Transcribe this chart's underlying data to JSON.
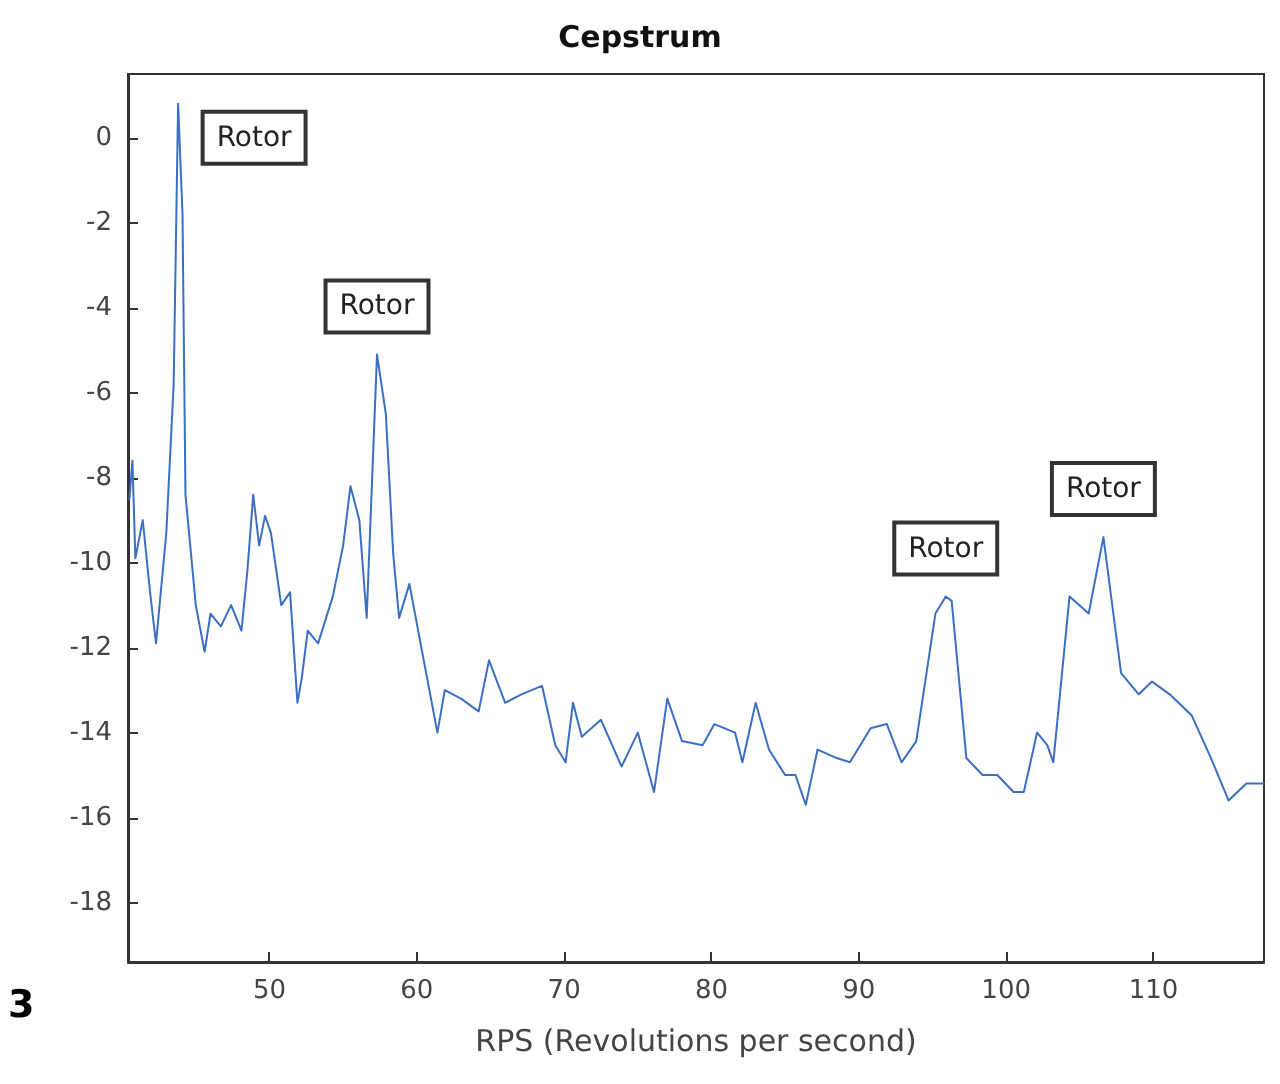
{
  "chart_data": {
    "type": "line",
    "title": "Cepstrum",
    "xlabel": "RPS (Revolutions per second)",
    "xlim": [
      40.4,
      117.5
    ],
    "xticks": [
      50,
      60,
      70,
      80,
      90,
      100,
      110
    ],
    "ylim": [
      -19.4,
      1.5
    ],
    "yticks": [
      0,
      -2,
      -4,
      -6,
      -8,
      -10,
      -12,
      -14,
      -16,
      -18
    ],
    "grid": false,
    "marker": "none",
    "line_style": "solid",
    "series": [
      {
        "color": "#3b6fc4",
        "x": [
          40.5,
          40.7,
          40.9,
          41.4,
          41.9,
          42.3,
          43.0,
          43.5,
          43.8,
          44.1,
          44.3,
          45.0,
          45.6,
          46.0,
          46.7,
          47.4,
          48.1,
          48.5,
          48.9,
          49.3,
          49.7,
          50.1,
          50.8,
          51.4,
          51.9,
          52.2,
          52.6,
          53.3,
          54.3,
          55.0,
          55.5,
          56.1,
          56.6,
          57.3,
          57.9,
          58.4,
          58.8,
          59.5,
          60.2,
          61.4,
          61.9,
          63.0,
          64.2,
          64.9,
          66.0,
          67.1,
          68.5,
          69.4,
          70.1,
          70.6,
          71.2,
          72.5,
          73.9,
          75.0,
          76.1,
          77.0,
          78.0,
          79.4,
          80.2,
          81.6,
          82.1,
          83.0,
          83.9,
          85.0,
          85.7,
          86.4,
          87.2,
          88.5,
          89.4,
          90.8,
          91.9,
          92.9,
          93.9,
          95.2,
          95.9,
          96.3,
          97.3,
          98.4,
          99.4,
          100.5,
          101.2,
          102.1,
          102.8,
          103.2,
          104.3,
          105.6,
          106.6,
          107.8,
          109.0,
          109.9,
          111.1,
          112.6,
          113.9,
          115.1,
          116.3,
          117.5
        ],
        "values": [
          -8.5,
          -7.6,
          -9.9,
          -9.0,
          -10.7,
          -11.9,
          -9.3,
          -5.8,
          0.8,
          -1.8,
          -8.4,
          -11.0,
          -12.1,
          -11.2,
          -11.5,
          -11.0,
          -11.6,
          -10.2,
          -8.4,
          -9.6,
          -8.9,
          -9.3,
          -11.0,
          -10.7,
          -13.3,
          -12.7,
          -11.6,
          -11.9,
          -10.8,
          -9.6,
          -8.2,
          -9.0,
          -11.3,
          -5.1,
          -6.5,
          -9.8,
          -11.3,
          -10.5,
          -11.8,
          -14.0,
          -13.0,
          -13.2,
          -13.5,
          -12.3,
          -13.3,
          -13.1,
          -12.9,
          -14.3,
          -14.7,
          -13.3,
          -14.1,
          -13.7,
          -14.8,
          -14.0,
          -15.4,
          -13.2,
          -14.2,
          -14.3,
          -13.8,
          -14.0,
          -14.7,
          -13.3,
          -14.4,
          -15.0,
          -15.0,
          -15.7,
          -14.4,
          -14.6,
          -14.7,
          -13.9,
          -13.8,
          -14.7,
          -14.2,
          -11.2,
          -10.8,
          -10.9,
          -14.6,
          -15.0,
          -15.0,
          -15.4,
          -15.4,
          -14.0,
          -14.3,
          -14.7,
          -10.8,
          -11.2,
          -9.4,
          -12.6,
          -13.1,
          -12.8,
          -13.1,
          -13.6,
          -14.6,
          -15.6,
          -15.2,
          -15.2
        ]
      }
    ],
    "annotations": [
      {
        "text": "Rotor",
        "x": 43.8,
        "y": 0.8
      },
      {
        "text": "Rotor",
        "x": 57.3,
        "y": -5.1
      },
      {
        "text": "Rotor",
        "x": 95.9,
        "y": -10.8
      },
      {
        "text": "Rotor",
        "x": 106.6,
        "y": -9.4
      },
      "3"
    ]
  }
}
